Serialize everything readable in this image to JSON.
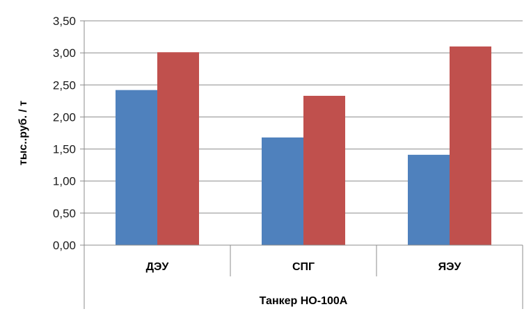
{
  "chart_data": {
    "type": "bar",
    "ylabel": "тыс..руб. / т",
    "group_label": "Танкер НО-100А",
    "categories": [
      "ДЭУ",
      "СПГ",
      "ЯЭУ"
    ],
    "ylim": [
      0,
      3.5
    ],
    "yticks": [
      "0,00",
      "0,50",
      "1,00",
      "1,50",
      "2,00",
      "2,50",
      "3,00",
      "3,50"
    ],
    "grid": true,
    "legend": "none",
    "series": [
      {
        "values": [
          2.42,
          1.68,
          1.41
        ],
        "color": "#4f81bd"
      },
      {
        "values": [
          3.01,
          2.33,
          3.1
        ],
        "color": "#c0504d"
      }
    ]
  }
}
